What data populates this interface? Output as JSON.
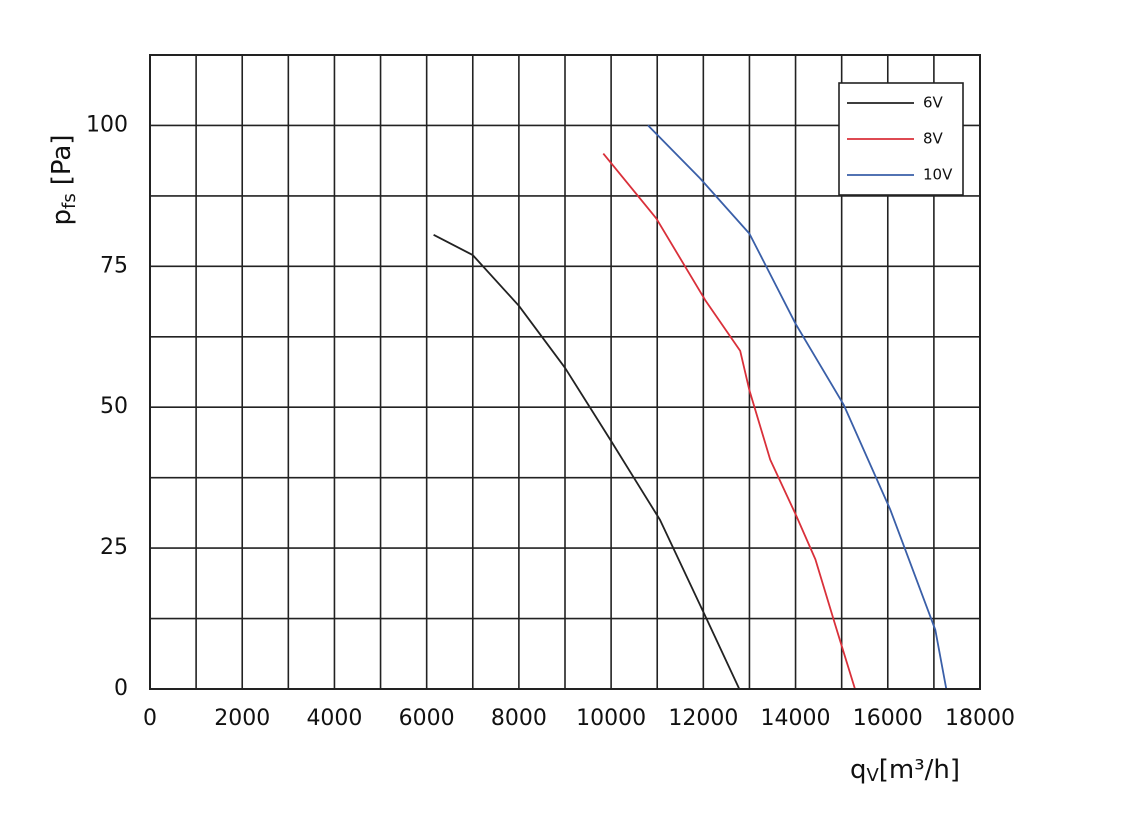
{
  "chart_data": {
    "type": "line",
    "xlabel": {
      "symbol": "q",
      "subscript": "V",
      "unit": "[m³/h]"
    },
    "ylabel": {
      "symbol": "p",
      "subscript": "fs",
      "unit": "[Pa]"
    },
    "xlim": [
      0,
      18000
    ],
    "ylim": [
      0,
      112.5
    ],
    "xticks": [
      0,
      2000,
      4000,
      6000,
      8000,
      10000,
      12000,
      14000,
      16000,
      18000
    ],
    "yticks": [
      0,
      25,
      50,
      75,
      100
    ],
    "xminorgrid": [
      1000,
      3000,
      5000,
      7000,
      9000,
      11000,
      13000,
      15000,
      17000
    ],
    "yminorgrid": [
      12.5,
      37.5,
      62.5,
      87.5,
      112.5
    ],
    "grid": true,
    "legend": "top-right",
    "series": [
      {
        "name": "6V",
        "color": "#222222",
        "x": [
          6150,
          7000,
          8000,
          9000,
          10000,
          11060,
          12080,
          12780
        ],
        "values": [
          80.6,
          77,
          68,
          57,
          44,
          30,
          12.3,
          0
        ]
      },
      {
        "name": "8V",
        "color": "#d9303a",
        "x": [
          9830,
          10980,
          12040,
          12800,
          13000,
          13450,
          14000,
          14430,
          14860,
          15290
        ],
        "values": [
          95,
          83.5,
          69,
          60,
          53,
          40.7,
          31,
          23,
          11.4,
          0
        ]
      },
      {
        "name": "10V",
        "color": "#3a5fa8",
        "x": [
          10800,
          11930,
          12520,
          13000,
          14000,
          15040,
          16050,
          17030,
          17270
        ],
        "values": [
          100,
          90.6,
          85.2,
          80.8,
          64.8,
          50.5,
          31.9,
          10.5,
          0
        ]
      }
    ]
  }
}
